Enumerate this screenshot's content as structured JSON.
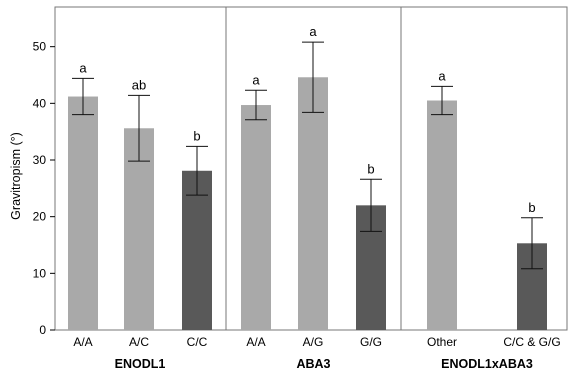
{
  "chart_data": {
    "type": "bar",
    "ylabel": "Gravitropism (°)",
    "xlabel": "",
    "ylim": [
      0,
      57
    ],
    "yticks": [
      0,
      10,
      20,
      30,
      40,
      50
    ],
    "grid": false,
    "colors": {
      "light": "#a9a9a9",
      "dark": "#595959"
    },
    "groups": [
      {
        "label": "ENODL1",
        "bars": [
          {
            "category": "A/A",
            "value": 41.2,
            "error": 3.2,
            "letter": "a",
            "shade": "light"
          },
          {
            "category": "A/C",
            "value": 35.6,
            "error": 5.8,
            "letter": "ab",
            "shade": "light"
          },
          {
            "category": "C/C",
            "value": 28.1,
            "error": 4.3,
            "letter": "b",
            "shade": "dark"
          }
        ]
      },
      {
        "label": "ABA3",
        "bars": [
          {
            "category": "A/A",
            "value": 39.7,
            "error": 2.6,
            "letter": "a",
            "shade": "light"
          },
          {
            "category": "A/G",
            "value": 44.6,
            "error": 6.2,
            "letter": "a",
            "shade": "light"
          },
          {
            "category": "G/G",
            "value": 22.0,
            "error": 4.6,
            "letter": "b",
            "shade": "dark"
          }
        ]
      },
      {
        "label": "ENODL1xABA3",
        "bars": [
          {
            "category": "Other",
            "value": 40.5,
            "error": 2.5,
            "letter": "a",
            "shade": "light"
          },
          {
            "category": "C/C & G/G",
            "value": 15.3,
            "error": 4.5,
            "letter": "b",
            "shade": "dark"
          }
        ]
      }
    ]
  }
}
